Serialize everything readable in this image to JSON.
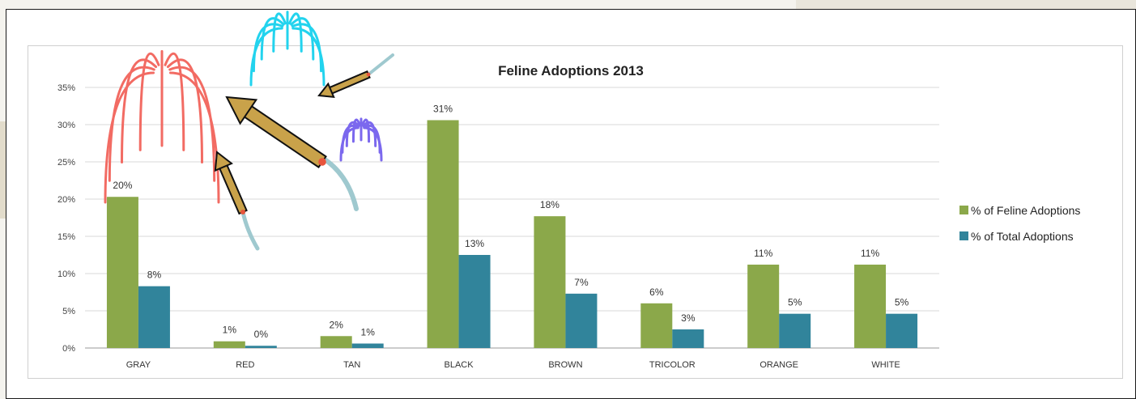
{
  "chart_data": {
    "type": "bar",
    "title": "Feline Adoptions 2013",
    "categories": [
      "GRAY",
      "RED",
      "TAN",
      "BLACK",
      "BROWN",
      "TRICOLOR",
      "ORANGE",
      "WHITE"
    ],
    "series": [
      {
        "name": "% of Feline Adoptions",
        "color": "#8ba84a",
        "values": [
          20.3,
          0.9,
          1.6,
          30.6,
          17.7,
          6.0,
          11.2,
          11.2
        ],
        "labels": [
          "20%",
          "1%",
          "2%",
          "31%",
          "18%",
          "6%",
          "11%",
          "11%"
        ]
      },
      {
        "name": "% of Total Adoptions",
        "color": "#31849b",
        "values": [
          8.3,
          0.3,
          0.6,
          12.5,
          7.3,
          2.5,
          4.6,
          4.6
        ],
        "labels": [
          "8%",
          "0%",
          "1%",
          "13%",
          "7%",
          "3%",
          "5%",
          "5%"
        ]
      }
    ],
    "ylim": [
      0,
      35
    ],
    "yticks": [
      0,
      5,
      10,
      15,
      20,
      25,
      30,
      35
    ],
    "ytick_labels": [
      "0%",
      "5%",
      "10%",
      "15%",
      "20%",
      "25%",
      "30%",
      "35%"
    ],
    "grid": true,
    "legend_position": "right"
  },
  "decorations": {
    "fireworks": [
      {
        "color": "#f26b63",
        "name": "red-firework"
      },
      {
        "color": "#22d3ee",
        "name": "cyan-firework"
      },
      {
        "color": "#7b68ee",
        "name": "purple-firework"
      }
    ],
    "rocket_color": "#c9a24a",
    "trail_color": "#9fc9cf"
  }
}
